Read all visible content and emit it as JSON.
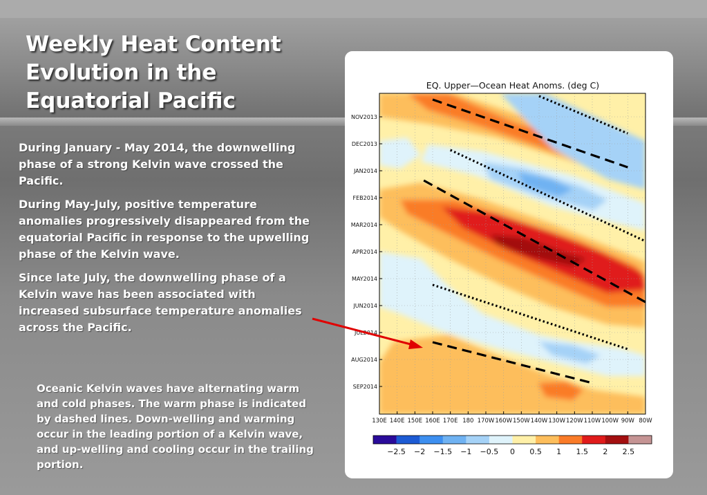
{
  "slide": {
    "title": "Weekly Heat Content Evolution in the Equatorial Pacific",
    "paragraphs": [
      "During January - May 2014, the downwelling phase of a strong Kelvin wave  crossed the Pacific.",
      "During May-July, positive temperature anomalies progressively disappeared from the equatorial Pacific in response to the upwelling  phase of the Kelvin wave.",
      "Since late July, the downwelling phase of a Kelvin wave has been associated with increased subsurface temperature anomalies across the Pacific."
    ],
    "note": "Oceanic Kelvin waves have alternating warm and cold phases. The warm phase is indicated by dashed lines. Down-welling and warming occur in the leading portion of a Kelvin wave, and up-welling and cooling occur in the trailing portion."
  },
  "colors": {
    "title": "#ffffff",
    "text": "#ffffff",
    "arrow": "#e00000",
    "card": "#ffffff"
  },
  "chart_data": {
    "type": "heatmap",
    "title": "EQ. Upper—Ocean Heat Anoms. (deg C)",
    "x_ticks": [
      "130E",
      "140E",
      "150E",
      "160E",
      "170E",
      "180",
      "170W",
      "160W",
      "150W",
      "140W",
      "130W",
      "120W",
      "110W",
      "100W",
      "90W",
      "80W"
    ],
    "y_ticks": [
      "NOV2013",
      "DEC2013",
      "JAN2014",
      "FEB2014",
      "MAR2014",
      "APR2014",
      "MAY2014",
      "JUN2014",
      "JUL2014",
      "AUG2014",
      "SEP2014"
    ],
    "colorbar": {
      "ticks": [
        "−2.5",
        "−2",
        "−1.5",
        "−1",
        "−0.5",
        "0",
        "0.5",
        "1",
        "1.5",
        "2",
        "2.5"
      ],
      "colors": [
        "#2a0b9a",
        "#1d5bd4",
        "#3d8ff0",
        "#6fb2f2",
        "#a5d2f7",
        "#dff3fb",
        "#fff0a8",
        "#fdbe5c",
        "#fa7b28",
        "#e01b1b",
        "#a30f10",
        "#c59494"
      ]
    },
    "grid": true,
    "warm_phase_lines": [
      {
        "style": "dashed",
        "start": [
          "160E",
          "NOV2013"
        ],
        "end": [
          "90W",
          "JAN2014"
        ]
      },
      {
        "style": "dashed",
        "start": [
          "155E",
          "FEB2014"
        ],
        "end": [
          "80W",
          "JUN2014"
        ]
      },
      {
        "style": "dashed",
        "start": [
          "160E",
          "AUG2014"
        ],
        "end": [
          "110W",
          "SEP2014"
        ]
      }
    ],
    "cold_phase_lines": [
      {
        "style": "dotted",
        "start": [
          "140W",
          "NOV2013"
        ],
        "end": [
          "90W",
          "DEC2013"
        ]
      },
      {
        "style": "dotted",
        "start": [
          "170E",
          "JAN2014"
        ],
        "end": [
          "80W",
          "APR2014"
        ]
      },
      {
        "style": "dotted",
        "start": [
          "160E",
          "JUN2014"
        ],
        "end": [
          "90W",
          "AUG2014"
        ]
      }
    ]
  }
}
